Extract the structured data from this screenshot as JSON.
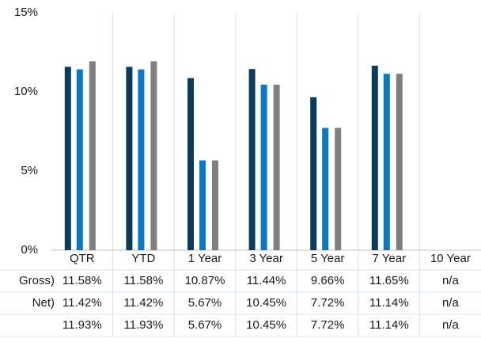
{
  "chart_data": {
    "type": "bar",
    "categories": [
      "QTR",
      "YTD",
      "1 Year",
      "3 Year",
      "5 Year",
      "7 Year",
      "10 Year"
    ],
    "series": [
      {
        "name": "Gross)",
        "color": "#0d3b5e",
        "values": [
          11.58,
          11.58,
          10.87,
          11.44,
          9.66,
          11.65,
          null
        ],
        "value_labels": [
          "11.58%",
          "11.58%",
          "10.87%",
          "11.44%",
          "9.66%",
          "11.65%",
          "n/a"
        ]
      },
      {
        "name": "Net)",
        "color": "#0a78c2",
        "values": [
          11.42,
          11.42,
          5.67,
          10.45,
          7.72,
          11.14,
          null
        ],
        "value_labels": [
          "11.42%",
          "11.42%",
          "5.67%",
          "10.45%",
          "7.72%",
          "11.14%",
          "n/a"
        ]
      },
      {
        "color": "#7f7f7f",
        "values": [
          11.93,
          11.93,
          5.67,
          10.45,
          7.72,
          11.14,
          null
        ],
        "value_labels": [
          "11.93%",
          "11.93%",
          "5.67%",
          "10.45%",
          "7.72%",
          "11.14%",
          "n/a"
        ]
      }
    ],
    "ylim": [
      0,
      15
    ],
    "yticks": [
      {
        "value": 0,
        "label": "0%"
      },
      {
        "value": 5,
        "label": "5%"
      },
      {
        "value": 10,
        "label": "10%"
      },
      {
        "value": 15,
        "label": "15%"
      }
    ],
    "grid": true
  }
}
